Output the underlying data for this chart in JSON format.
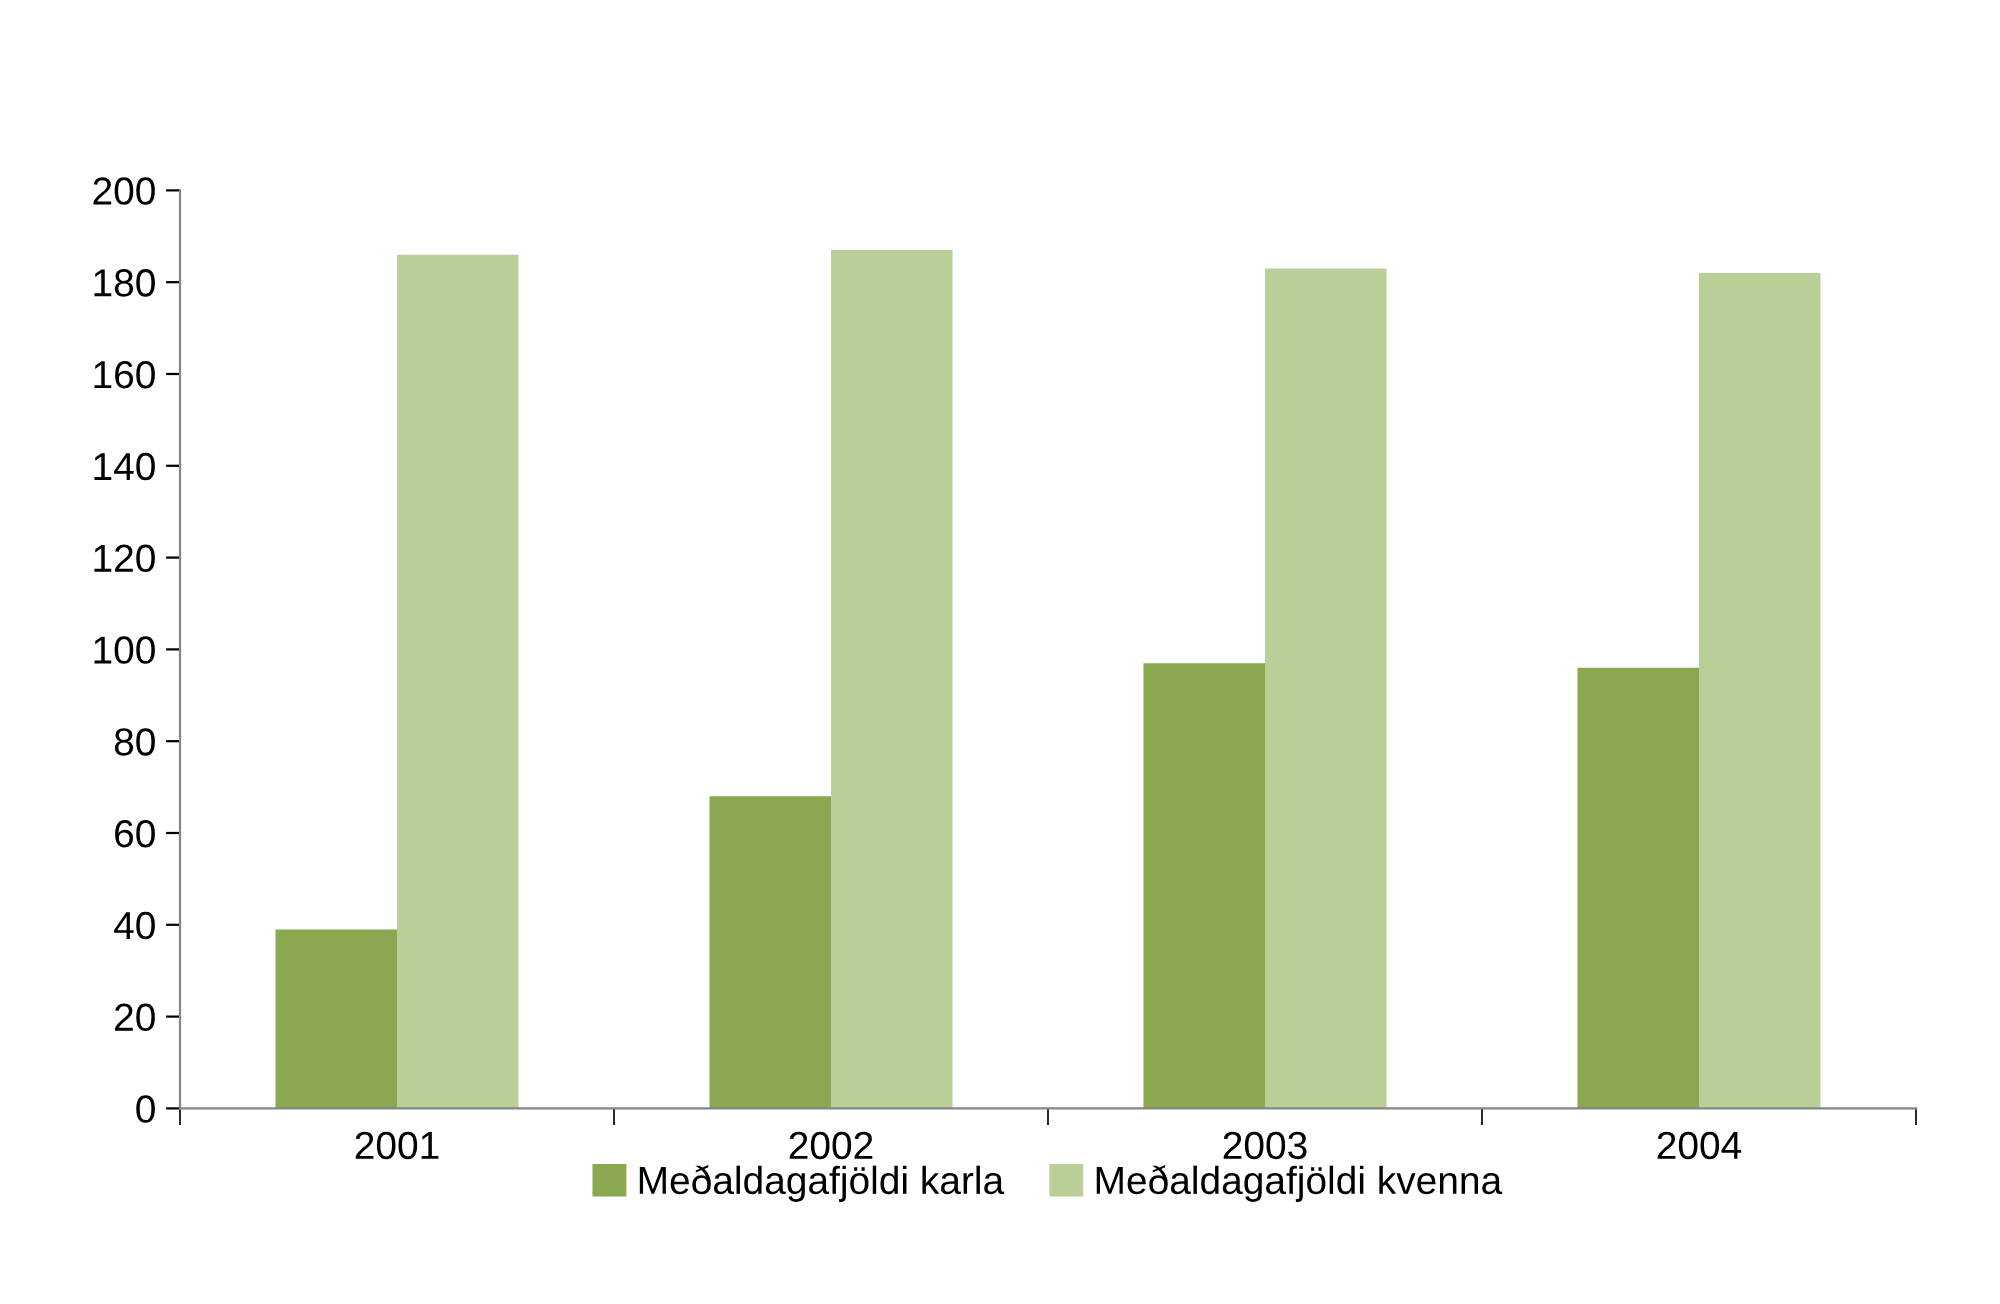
{
  "chart_data": {
    "type": "bar",
    "categories": [
      "2001",
      "2002",
      "2003",
      "2004"
    ],
    "series": [
      {
        "name": "Meðaldagafjöldi karla",
        "color": "#8aa84f",
        "values": [
          39,
          68,
          97,
          96
        ]
      },
      {
        "name": "Meðaldagafjöldi kvenna",
        "color": "#bacf97",
        "values": [
          186,
          187,
          183,
          182
        ]
      }
    ],
    "ylim": [
      0,
      200
    ],
    "yticks": [
      0,
      20,
      40,
      60,
      80,
      100,
      120,
      140,
      160,
      180,
      200
    ],
    "grid": false,
    "legend": "bottom"
  }
}
